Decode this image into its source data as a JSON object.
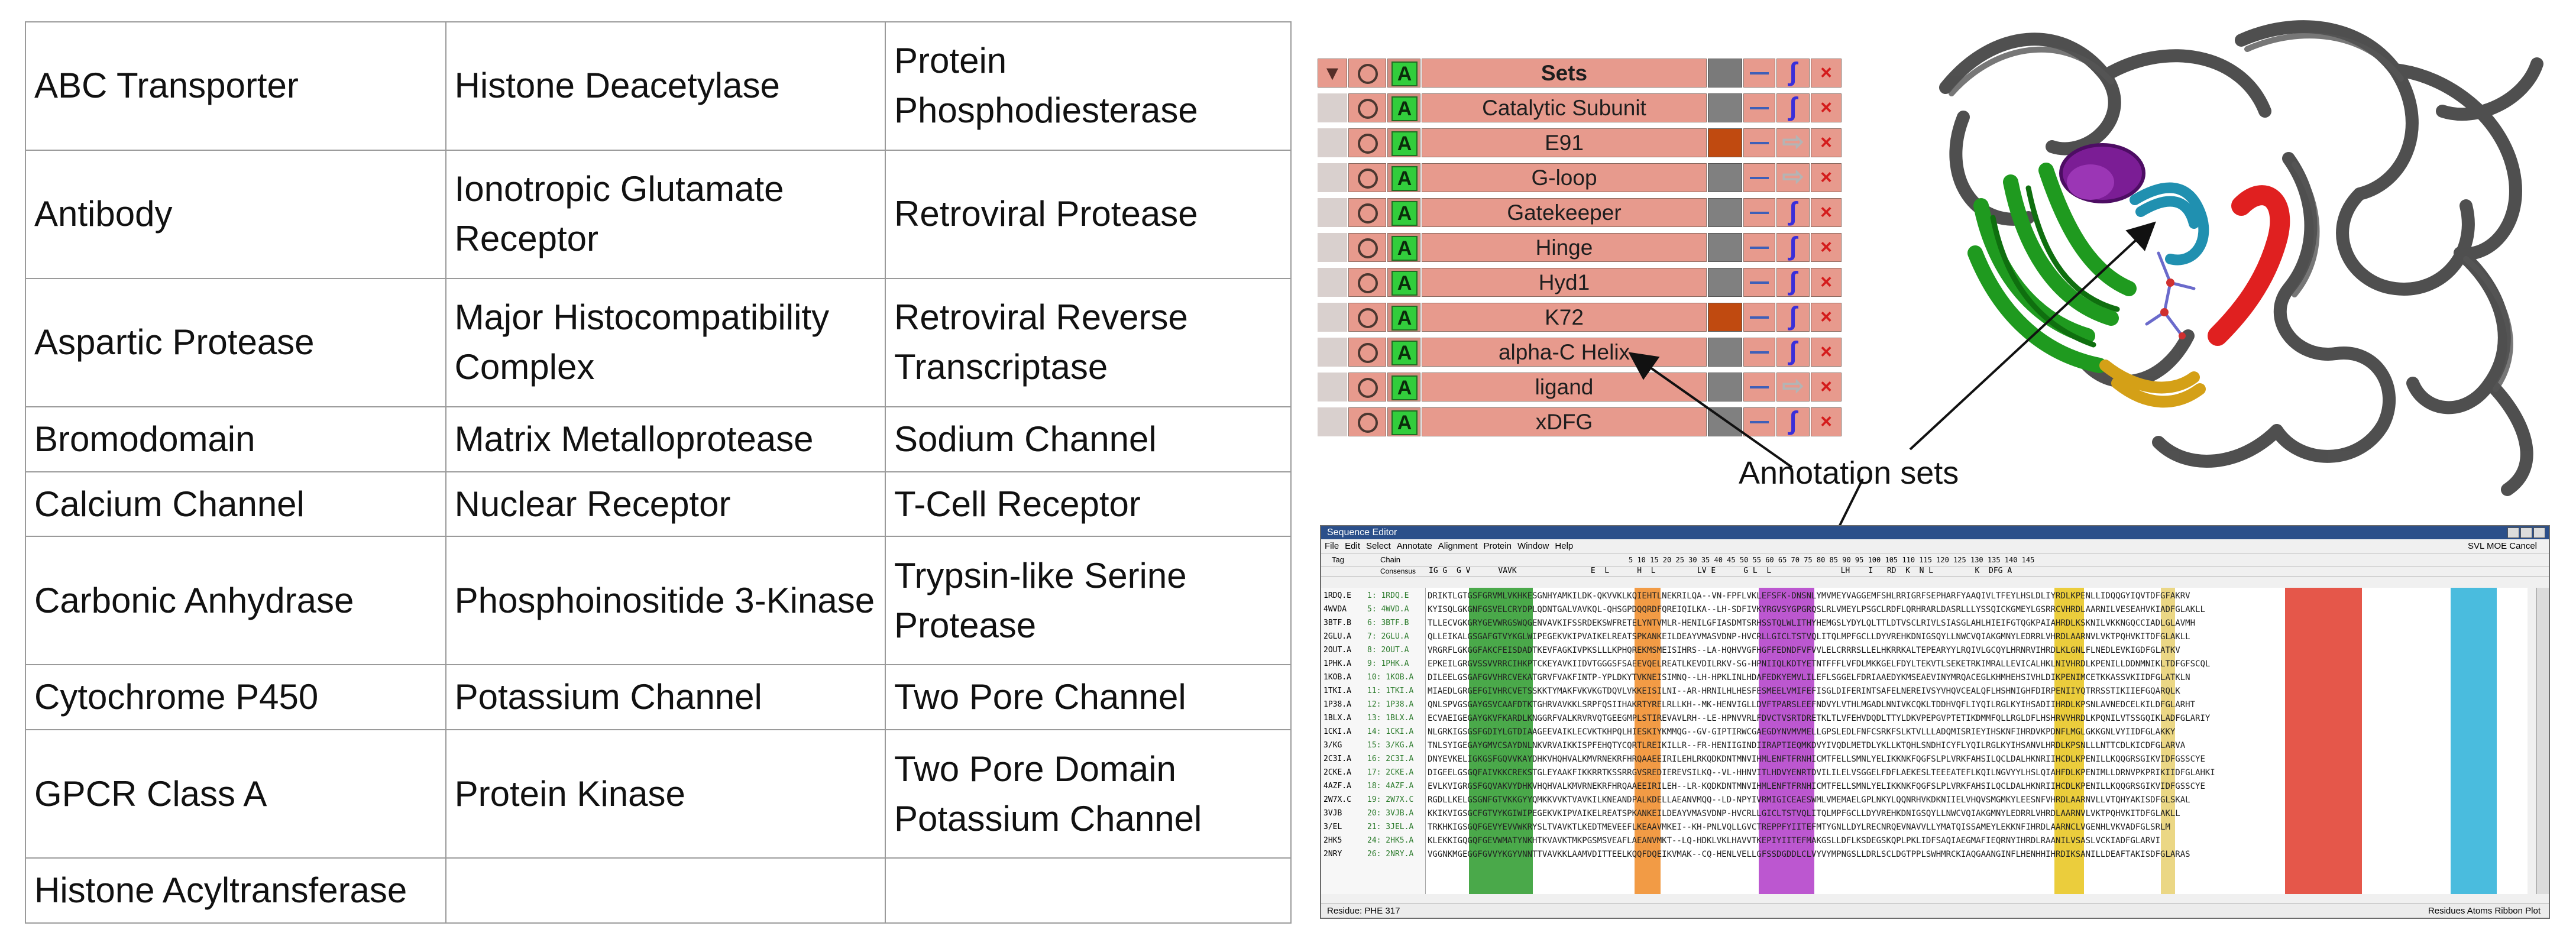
{
  "families": [
    [
      "ABC Transporter",
      "Histone Deacetylase",
      "Protein Phosphodiesterase"
    ],
    [
      "Antibody",
      "Ionotropic Glutamate Receptor",
      "Retroviral Protease"
    ],
    [
      "Aspartic Protease",
      "Major Histocompatibility Complex",
      "Retroviral Reverse Transcriptase"
    ],
    [
      "Bromodomain",
      "Matrix Metalloprotease",
      "Sodium Channel"
    ],
    [
      "Calcium Channel",
      "Nuclear Receptor",
      "T-Cell Receptor"
    ],
    [
      "Carbonic Anhydrase",
      "Phosphoinositide 3-Kinase",
      "Trypsin-like Serine Protease"
    ],
    [
      "Cytochrome P450",
      "Potassium Channel",
      "Two Pore Channel"
    ],
    [
      "GPCR Class A",
      "Protein Kinase",
      "Two Pore Domain Potassium Channel"
    ],
    [
      "Histone Acyltransferase",
      "",
      ""
    ]
  ],
  "sets_panel": {
    "header": {
      "expand": "▼",
      "active": "A",
      "name": "Sets",
      "delete": "×"
    },
    "rows": [
      {
        "active": "A",
        "name": "Catalytic Subunit",
        "color": "#808080",
        "render": "ribbon",
        "delete": "×"
      },
      {
        "active": "A",
        "name": "E91",
        "color": "#c04a10",
        "render": "arrow",
        "delete": "×"
      },
      {
        "active": "A",
        "name": "G-loop",
        "color": "#808080",
        "render": "arrow",
        "delete": "×"
      },
      {
        "active": "A",
        "name": "Gatekeeper",
        "color": "#808080",
        "render": "ribbon",
        "delete": "×"
      },
      {
        "active": "A",
        "name": "Hinge",
        "color": "#808080",
        "render": "ribbon",
        "delete": "×"
      },
      {
        "active": "A",
        "name": "Hyd1",
        "color": "#808080",
        "render": "ribbon",
        "delete": "×"
      },
      {
        "active": "A",
        "name": "K72",
        "color": "#c04a10",
        "render": "ribbon",
        "delete": "×"
      },
      {
        "active": "A",
        "name": "alpha-C Helix",
        "color": "#808080",
        "render": "ribbon",
        "delete": "×"
      },
      {
        "active": "A",
        "name": "ligand",
        "color": "#808080",
        "render": "arrow",
        "delete": "×"
      },
      {
        "active": "A",
        "name": "xDFG",
        "color": "#808080",
        "render": "ribbon",
        "delete": "×"
      }
    ]
  },
  "annotation_label": "Annotation sets",
  "sequence_editor": {
    "title": "Sequence Editor",
    "menu": [
      "File",
      "Edit",
      "Select",
      "Annotate",
      "Alignment",
      "Protein",
      "Window",
      "Help"
    ],
    "menu_right": "SVL  MOE  Cancel",
    "col_tag": "Tag",
    "col_chain": "Chain",
    "col_consensus": "Consensus",
    "consensus": "IG G  G V      VAVK                E  L      H  L         LV E      G L  L               LH    I   RD  K  N L         K  DFG A",
    "ruler": "5    10   15   20   25   30   35   40   45   50   55   60   65   70   75   80   85   90   95   100  105  110  115  120  125  130  135  140  145",
    "chains": [
      {
        "tag": "1RDQ.E",
        "chain": "1: 1RDQ.E",
        "seq": "DRIKTLGTGSFGRVMLVKHKESGNHYAMKILDK-QKVVKLKQIEHTLNEKRILQA--VN-FPFLVKLEFSFK-DNSNLYMVMEYVAGGEMFSHLRRIGRFSEPHARFYAAQIVLTFEYLHSLDLIYRDLKPENLLIDQQGYIQVTDFGFAKRV"
      },
      {
        "tag": "4WVDA",
        "chain": "5: 4WVD.A",
        "seq": "KYISQLGKGNFGSVELCRYDPLQDNTGALVAVKQL-QHSGPDQQRDFQREIQILKA--LH-SDFIVKYRGVSYGPGRQSLRLVMEYLPSGCLRDFLQRHRARLDASRLLLYSSQICKGMEYLGSRRCVHRDLAARNILVESEAHVKIADFGLAKLL"
      },
      {
        "tag": "3BTF.B",
        "chain": "6: 3BTF.B",
        "seq": "TLLECVGKGRYGEVWRGSWQGENVAVKIFSSRDEKSWFRETELYNTVMLR-HENILGFIASDMTSRHSSTQLWLITHYHEMGSLYDYLQLTTLDTVSCLRIVLSIASGLAHLHIEIFGTQGKPAIAHRDLKSKNILVKKNGQCCIADLGLAVMH"
      },
      {
        "tag": "2GLU.A",
        "chain": "7: 2GLU.A",
        "seq": "QLLEIKALGSGAFGTVYKGLWIPEGEKVKIPVAIKELREATSPKANKEILDEAYVMASVDNP-HVCRLLGICLTSTVQLITQLMPFGCLLDYVREHKDNIGSQYLLNWCVQIAKGMNYLEDRRLVHRDLAARNVLVKTPQHVKITDFGLAKLL"
      },
      {
        "tag": "2OUT.A",
        "chain": "8: 2OUT.A",
        "seq": "VRGRFLGKGGFAKCFEISDADTKEVFAGKIVPKSLLLKPHQREKMSMEISIHRS--LA-HQHVVGFHGFFEDNDFVFVVLELCRRRSLLELHKRRKALTEPEARYYLRQIVLGCQYLHRNRVIHRDLKLGNLFLNEDLEVKIGDFGLATKV"
      },
      {
        "tag": "1PHK.A",
        "chain": "9: 1PHK.A",
        "seq": "EPKEILGRGVSSVVRRCIHKPTCKEYAVKIIDVTGGGSFSAEEVQELREATLKEVDILRKV-SG-HPNIIQLKDTYETNTFFFLVFDLMKKGELFDYLTEKVTLSEKETRKIMRALLEVICALHKLNIVHRDLKPENILLDDNMNIKLTDFGFSCQL"
      },
      {
        "tag": "1KOB.A",
        "chain": "10: 1KOB.A",
        "seq": "DILEELGSGAFGVVHRCVEKATGRVFVAKFINTP-YPLDKYTVKNEISIMNQ--LH-HPKLINLHDAFEDKYEMVLILEFLSGGELFDRIAAEDYKMSEAEVINYMRQACEGLKHMHEHSIVHLDIKPENIMCETKKASSVKIIDFGLATKLN"
      },
      {
        "tag": "1TKI.A",
        "chain": "11: 1TKI.A",
        "seq": "MIAEDLGRGEFGIVHRCVETSSKKTYMAKFVKVKGTDQVLVKKEISILNI--AR-HRNILHLHESFESMEELVMIFEFISGLDIFERINTSAFELNEREIVSYVHQVCEALQFLHSHNIGHFDIRPENIIYQTRRSSTIKIIEFGQARQLK"
      },
      {
        "tag": "1P38.A",
        "chain": "12: 1P38.A",
        "seq": "QNLSPVGSGAYGSVCAAFDTKTGHRVAVKKLSRPFQSIIHAKRTYRELRLLKH--MK-HENVIGLLDVFTPARSLEEFNDVYLVTHLMGADLNNIVKCQKLTDDHVQFLIYQILRGLKYIHSADIIHRDLKPSNLAVNEDCELKILDFGLARHT"
      },
      {
        "tag": "1BLX.A",
        "chain": "13: 1BLX.A",
        "seq": "ECVAEIGEGAYGKVFKARDLKNGGRFVALKRVRVQTGEEGMPLSTIREVAVLRH--LE-HPNVVRLFDVCTVSRTDRETKLTLVFEHVDQDLTTYLDKVPEPGVPTETIKDMMFQLLRGLDFLHSHRVVHRDLKPQNILVTSSGQIKLADFGLARIY"
      },
      {
        "tag": "1CKI.A",
        "chain": "14: 1CKI.A",
        "seq": "NLGRKIGSGSFGDIYLGTDIAAGEEVAIKLECVKTKHPQLHIESKIYKMMQG--GV-GIPTIRWCGAEGDYNVMVMELLGPSLEDLFNFCSRKFSLKTVLLLADQMISRIEYIHSKNFIHRDVKPDNFLMGLGKKGNLVYIIDFGLAKKY"
      },
      {
        "tag": "3/KG",
        "chain": "15: 3/KG.A",
        "seq": "TNLSYIGEGAYGMVCSAYDNLNKVRVAIKKISPFEHQTYCQRTLREIKILLR--FR-HENIIGINDIIRAPTIEQMKDVYIVQDLMETDLYKLLKTQHLSNDHICYFLYQILRGLKYIHSANVLHRDLKPSNLLLNTTCDLKICDFGLARVA"
      },
      {
        "tag": "2C3I.A",
        "chain": "16: 2C3I.A",
        "seq": "DNYEVKELIGKGSFGQVVKAYDHKVHQHVALKMVRNEKRFHRQAAEEIRILEHLRKQDKDNTMNVIHMLENFTFRNHICMTFELLSMNLYELIKKNKFQGFSLPLVRKFAHSILQCLDALHKNRIIHCDLKPENILLKQQGRSGIKVIDFGSSCYE"
      },
      {
        "tag": "2CKE.A",
        "chain": "17: 2CKE.A",
        "seq": "DIGEELGSGQFAIVKKCREKSTGLEYAAKFIKKRRTKSSRRGVSREDIEREVSILKQ--VL-HHNVITLHDVYENRTDVILILELVSGGELFDFLAEKESLTEEEATEFLKQILNGVYYLHSLQIAHFDLKPENIMLLDRNVPKPRIKIIDFGLAHKI"
      },
      {
        "tag": "4AZF.A",
        "chain": "18: 4AZF.A",
        "seq": "EVLKVIGRGSFGQVAKVYDHKVHQHVALKMVRNEKRFHRQAAEEIRILEH--LR-KQDKDNTMNVIHMLENFTFRNHICMTFELLSMNLYELIKKNKFQGFSLPLVRKFAHSILQCLDALHKNRIIHCDLKPENILLKQQGRSGIKVIDFGSSCYE"
      },
      {
        "tag": "2W7X.C",
        "chain": "19: 2W7X.C",
        "seq": "RGDLLKELGSGNFGTVKKGYYQMKKVVKTVAVKILKNEANDPALKDELLAEANVMQQ--LD-NPYIVRMIGICEAESWMLVMEMAELGPLNKYLQQNRHVKDKNIIELVHQVSMGMKYLEESNFVHRDLAARNVLLVTQHYAKISDFGLSKAL"
      },
      {
        "tag": "3VJB",
        "chain": "20: 3VJB.A",
        "seq": "KKIKVIGSGCFGTVYKGIWIPEGEKVKIPVAIKELREATSPKANKEILDEAYVMASVDNP-HVCRLLGICLTSTVQLITQLMPFGCLLDYVREHKDNIGSQYLLNWCVQIAKGMNYLEDRRLVHRDLAARNVLVKTPQHVKITDFGLAKLL"
      },
      {
        "tag": "3/EL",
        "chain": "21: 3JEL.A",
        "seq": "TRKHKIGSGQFGEVYEVVWKRYSLTVAVKTLKEDTMEVEEFLKEAAVMKEI--KH-PNLVQLLGVCTREPPFYIITEFMTYGNLLDYLRECNRQEVNAVVLLYMATQISSAMEYLEKKNFIHRDLAARNCLVGENHLVKVADFGLSRLM"
      },
      {
        "tag": "2HK5",
        "chain": "24: 2HK5.A",
        "seq": "KLEKKIGQGQFGEVWMATYNKHTKVAVKTMKPGSMSVEAFLAEANVMKT--LQ-HDKLVKLHAVVTKEPIYIITEFMAKGSLLDFLKSDEGSKQPLPKLIDFSAQIAEGMAFIEQRNYIHRDLRAANILVSASLVCKIADFGLARVI"
      },
      {
        "tag": "2NRY",
        "chain": "26: 2NRY.A",
        "seq": "VGGNKMGEGGFGVVYKGYVNNTTVAVKKLAAMVDITTEELKQQFDQEIKVMAK--CQ-HENLVELLGFSSDGDDLCLVYVYMPNGSLLDRLSCLDGTPPLSWHMRCKIAQGAANGINFLHENHHIHRDIKSANILLDEAFTAKISDFGLARAS"
      }
    ],
    "status": "Residue: PHE 317",
    "status_right": "Residues  Atoms  Ribbon  Plot"
  }
}
